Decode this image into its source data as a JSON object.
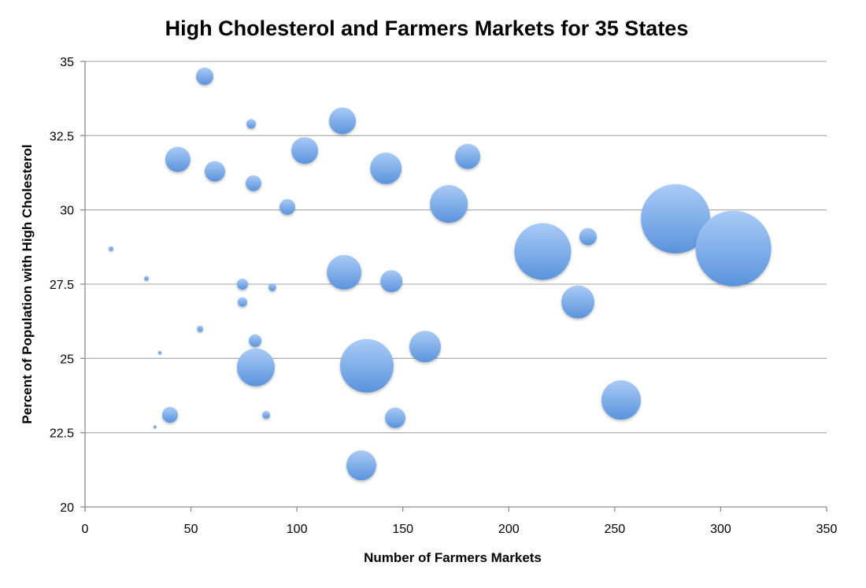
{
  "chart_data": {
    "type": "bubble",
    "title": "High Cholesterol and Farmers Markets for 35 States",
    "xlabel": "Number of Farmers Markets",
    "ylabel": "Percent of Population with High Cholesterol",
    "xlim": [
      0,
      350
    ],
    "ylim": [
      20,
      35
    ],
    "xticks": [
      0,
      50,
      100,
      150,
      200,
      250,
      300,
      350
    ],
    "yticks": [
      "20",
      "22.5",
      "25",
      "27.5",
      "30",
      "32.5",
      "35"
    ],
    "grid": "horizontal",
    "legend": "none",
    "bubble_color": "#6fa2e4",
    "points": [
      {
        "x": 56.5,
        "y": 34.5,
        "size": 121
      },
      {
        "x": 78.4,
        "y": 32.9,
        "size": 36
      },
      {
        "x": 121.5,
        "y": 33.0,
        "size": 289
      },
      {
        "x": 103.7,
        "y": 32.0,
        "size": 289
      },
      {
        "x": 43.8,
        "y": 31.7,
        "size": 256
      },
      {
        "x": 61.3,
        "y": 31.3,
        "size": 169
      },
      {
        "x": 79.5,
        "y": 30.9,
        "size": 100
      },
      {
        "x": 142.0,
        "y": 31.4,
        "size": 400
      },
      {
        "x": 180.6,
        "y": 31.8,
        "size": 256
      },
      {
        "x": 95.5,
        "y": 30.1,
        "size": 100
      },
      {
        "x": 171.7,
        "y": 30.2,
        "size": 576
      },
      {
        "x": 278.7,
        "y": 29.7,
        "size": 1936
      },
      {
        "x": 306.0,
        "y": 28.7,
        "size": 2304
      },
      {
        "x": 216.0,
        "y": 28.6,
        "size": 1296
      },
      {
        "x": 237.4,
        "y": 29.1,
        "size": 121
      },
      {
        "x": 12.3,
        "y": 28.7,
        "size": 9
      },
      {
        "x": 29.0,
        "y": 27.7,
        "size": 9
      },
      {
        "x": 74.3,
        "y": 27.5,
        "size": 49
      },
      {
        "x": 88.4,
        "y": 27.4,
        "size": 25
      },
      {
        "x": 122.3,
        "y": 27.9,
        "size": 484
      },
      {
        "x": 144.6,
        "y": 27.6,
        "size": 196
      },
      {
        "x": 74.3,
        "y": 26.9,
        "size": 36
      },
      {
        "x": 232.6,
        "y": 26.9,
        "size": 441
      },
      {
        "x": 54.3,
        "y": 26.0,
        "size": 16
      },
      {
        "x": 80.3,
        "y": 25.6,
        "size": 64
      },
      {
        "x": 35.3,
        "y": 25.2,
        "size": 5
      },
      {
        "x": 160.5,
        "y": 25.4,
        "size": 400
      },
      {
        "x": 80.6,
        "y": 24.7,
        "size": 576
      },
      {
        "x": 133.0,
        "y": 24.75,
        "size": 1156
      },
      {
        "x": 40.1,
        "y": 23.1,
        "size": 100
      },
      {
        "x": 85.5,
        "y": 23.1,
        "size": 25
      },
      {
        "x": 146.4,
        "y": 23.0,
        "size": 169
      },
      {
        "x": 253.0,
        "y": 23.6,
        "size": 625
      },
      {
        "x": 33.0,
        "y": 22.7,
        "size": 4
      },
      {
        "x": 130.4,
        "y": 21.4,
        "size": 361
      }
    ]
  }
}
